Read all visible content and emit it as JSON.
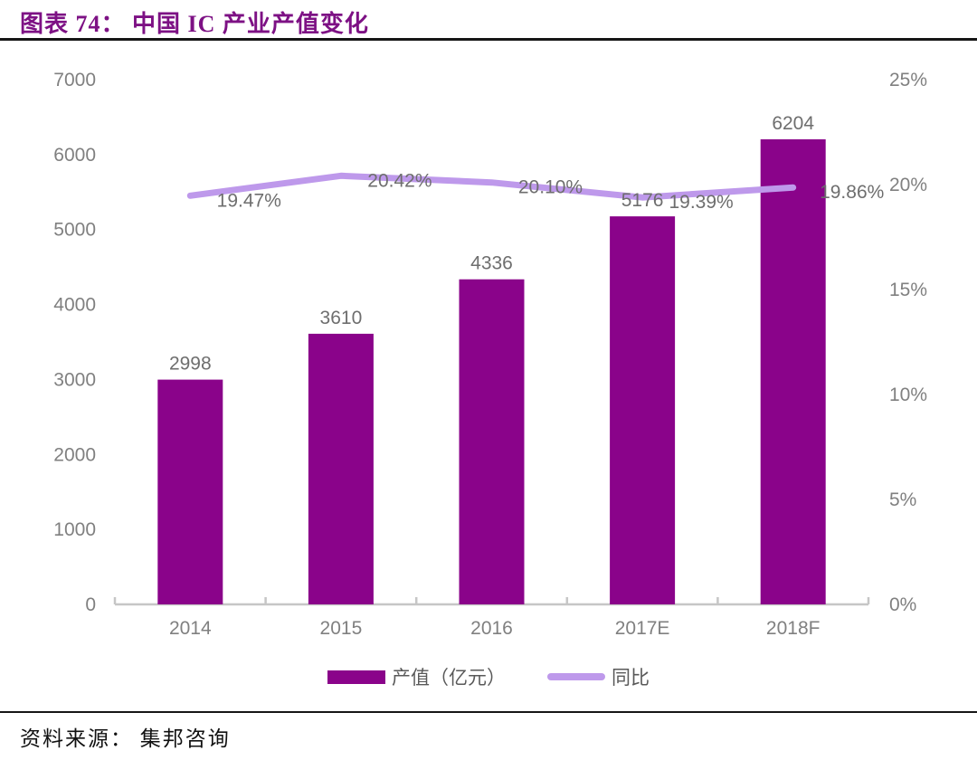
{
  "header": {
    "title": "图表 74： 中国 IC 产业产值变化",
    "title_color": "#7d1184"
  },
  "footer": {
    "source": "资料来源： 集邦咨询"
  },
  "chart_data": {
    "type": "bar",
    "subtype": "bar-with-line-overlay",
    "title": "中国 IC 产业产值变化",
    "categories": [
      "2014",
      "2015",
      "2016",
      "2017E",
      "2018F"
    ],
    "series": [
      {
        "name": "产值（亿元）",
        "type": "bar",
        "axis": "left",
        "values": [
          2998,
          3610,
          4336,
          5176,
          6204
        ],
        "labels": [
          "2998",
          "3610",
          "4336",
          "5176",
          "6204"
        ],
        "color": "#8a038a"
      },
      {
        "name": "同比",
        "type": "line",
        "axis": "right",
        "values": [
          19.47,
          20.42,
          20.1,
          19.39,
          19.86
        ],
        "labels": [
          "19.47%",
          "20.42%",
          "20.10%",
          "19.39%",
          "19.86%"
        ],
        "color": "#be99eb"
      }
    ],
    "left_axis": {
      "min": 0,
      "max": 7000,
      "step": 1000,
      "ticks": [
        "7000",
        "6000",
        "5000",
        "4000",
        "3000",
        "2000",
        "1000",
        "0"
      ]
    },
    "right_axis": {
      "min": 0,
      "max": 25,
      "step": 5,
      "ticks": [
        "25%",
        "20%",
        "15%",
        "10%",
        "5%",
        "0%"
      ]
    },
    "legend": [
      {
        "label": "产值（亿元）",
        "marker": "bar",
        "color": "#8a038a"
      },
      {
        "label": "同比",
        "marker": "line",
        "color": "#be99eb"
      }
    ],
    "legend_position": "bottom",
    "grid": false,
    "colors": {
      "bar": "#8a038a",
      "line": "#be99eb",
      "axis_text": "#808080",
      "data_label": "#6e6e6e",
      "axis_line": "#c6c6c6",
      "legend_text": "#595959"
    }
  }
}
